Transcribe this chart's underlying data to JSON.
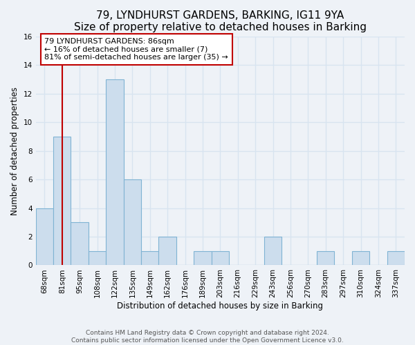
{
  "title": "79, LYNDHURST GARDENS, BARKING, IG11 9YA",
  "subtitle": "Size of property relative to detached houses in Barking",
  "xlabel": "Distribution of detached houses by size in Barking",
  "ylabel": "Number of detached properties",
  "categories": [
    "68sqm",
    "81sqm",
    "95sqm",
    "108sqm",
    "122sqm",
    "135sqm",
    "149sqm",
    "162sqm",
    "176sqm",
    "189sqm",
    "203sqm",
    "216sqm",
    "229sqm",
    "243sqm",
    "256sqm",
    "270sqm",
    "283sqm",
    "297sqm",
    "310sqm",
    "324sqm",
    "337sqm"
  ],
  "values": [
    4,
    9,
    3,
    1,
    13,
    6,
    1,
    2,
    0,
    1,
    1,
    0,
    0,
    2,
    0,
    0,
    1,
    0,
    1,
    0,
    1
  ],
  "bar_color": "#ccdded",
  "bar_edge_color": "#7fb3d3",
  "property_line_color": "#c00000",
  "property_line_x": 1.0,
  "annotation_text": "79 LYNDHURST GARDENS: 86sqm\n← 16% of detached houses are smaller (7)\n81% of semi-detached houses are larger (35) →",
  "annotation_box_color": "#ffffff",
  "annotation_box_edge_color": "#c00000",
  "ylim": [
    0,
    16
  ],
  "yticks": [
    0,
    2,
    4,
    6,
    8,
    10,
    12,
    14,
    16
  ],
  "footer1": "Contains HM Land Registry data © Crown copyright and database right 2024.",
  "footer2": "Contains public sector information licensed under the Open Government Licence v3.0.",
  "background_color": "#eef2f7",
  "grid_color": "#d8e4f0",
  "title_fontsize": 11,
  "subtitle_fontsize": 9.5,
  "label_fontsize": 8.5,
  "tick_fontsize": 7.5,
  "annotation_fontsize": 8,
  "footer_fontsize": 6.5
}
